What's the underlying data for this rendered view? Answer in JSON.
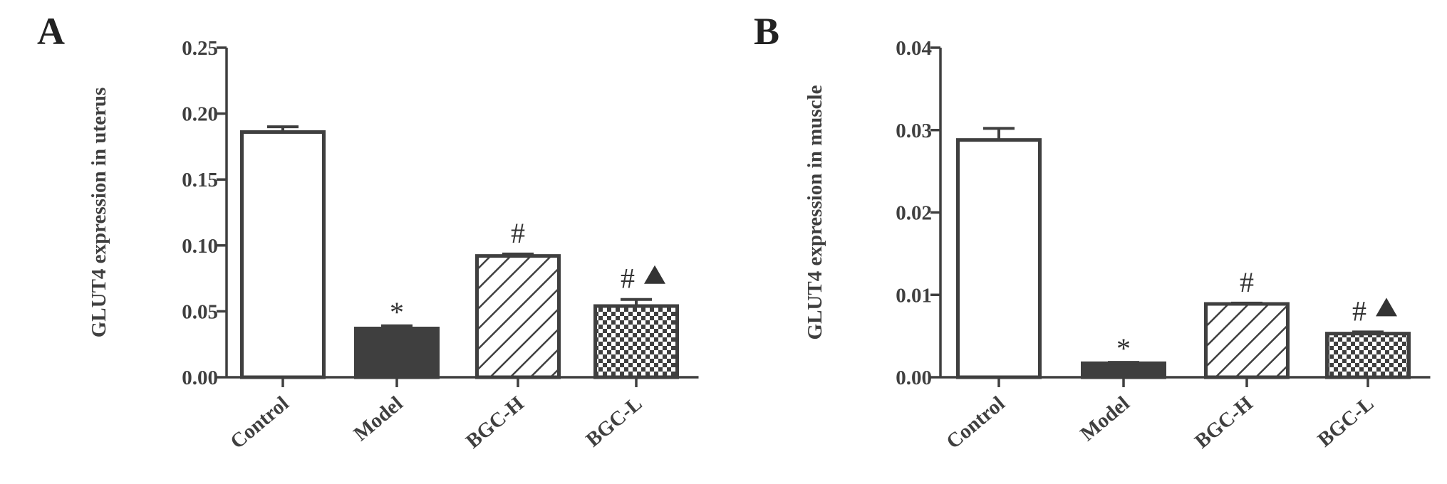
{
  "chart_data": [
    {
      "panel": "A",
      "type": "bar",
      "ylabel": "GLUT4 expression in uterus",
      "ylim": [
        0,
        0.25
      ],
      "yticks": [
        "0.00",
        "0.05",
        "0.10",
        "0.15",
        "0.20",
        "0.25"
      ],
      "categories": [
        "Control",
        "Model",
        "BGC-H",
        "BGC-L"
      ],
      "values": [
        0.186,
        0.037,
        0.092,
        0.054
      ],
      "errors": [
        0.004,
        0.002,
        0.0015,
        0.005
      ],
      "annotations": [
        "",
        "*",
        "#",
        "#▲"
      ],
      "fills": [
        "white",
        "solid",
        "diagonal-hatch",
        "checker"
      ],
      "bar_color": "#3f3f3f"
    },
    {
      "panel": "B",
      "type": "bar",
      "ylabel": "GLUT4 expression in muscle",
      "ylim": [
        0,
        0.04
      ],
      "yticks": [
        "0.00",
        "0.01",
        "0.02",
        "0.03",
        "0.04"
      ],
      "categories": [
        "Control",
        "Model",
        "BGC-H",
        "BGC-L"
      ],
      "values": [
        0.0288,
        0.0017,
        0.0089,
        0.0053
      ],
      "errors": [
        0.0014,
        0.0001,
        0.0001,
        0.0002
      ],
      "annotations": [
        "",
        "*",
        "#",
        "#▲"
      ],
      "fills": [
        "white",
        "solid",
        "diagonal-hatch",
        "checker"
      ],
      "bar_color": "#3f3f3f"
    }
  ]
}
